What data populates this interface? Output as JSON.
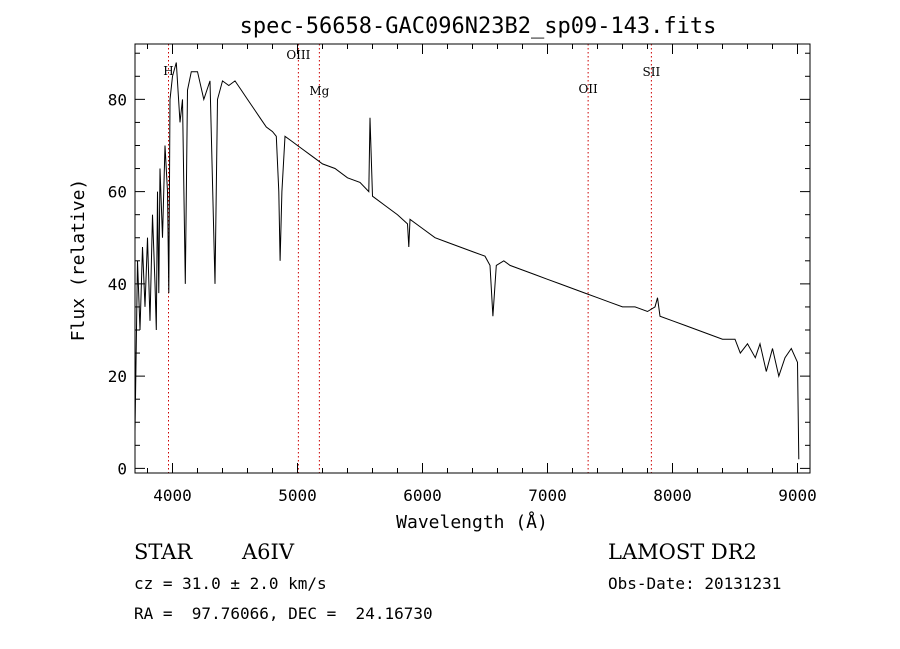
{
  "chart_data": {
    "type": "line",
    "title": "spec-56658-GAC096N23B2_sp09-143.fits",
    "xlabel": "Wavelength (Å)",
    "ylabel": "Flux (relative)",
    "xlim": [
      3700,
      9100
    ],
    "ylim": [
      -1,
      92
    ],
    "xticks": [
      4000,
      5000,
      6000,
      7000,
      8000,
      9000
    ],
    "yticks": [
      0,
      20,
      40,
      60,
      80
    ],
    "grid": false,
    "line_color": "#000000",
    "marker_color": "#cc0000",
    "series": [
      {
        "x": [
          3700,
          3720,
          3740,
          3760,
          3780,
          3800,
          3820,
          3840,
          3860,
          3870,
          3880,
          3890,
          3900,
          3920,
          3940,
          3960,
          3970,
          3980,
          4000,
          4030,
          4060,
          4080,
          4102,
          4120,
          4150,
          4200,
          4250,
          4300,
          4340,
          4360,
          4400,
          4450,
          4500,
          4550,
          4600,
          4650,
          4700,
          4750,
          4800,
          4830,
          4850,
          4861,
          4875,
          4900,
          4950,
          5000,
          5050,
          5100,
          5150,
          5200,
          5300,
          5400,
          5500,
          5570,
          5580,
          5600,
          5700,
          5800,
          5880,
          5890,
          5900,
          6000,
          6100,
          6200,
          6300,
          6400,
          6500,
          6540,
          6563,
          6590,
          6650,
          6700,
          6800,
          6900,
          7000,
          7100,
          7200,
          7300,
          7400,
          7500,
          7600,
          7700,
          7800,
          7860,
          7880,
          7900,
          8000,
          8100,
          8200,
          8300,
          8400,
          8500,
          8542,
          8600,
          8662,
          8700,
          8750,
          8800,
          8850,
          8900,
          8950,
          9000,
          9010
        ],
        "y": [
          8,
          45,
          30,
          48,
          35,
          50,
          32,
          55,
          40,
          30,
          60,
          38,
          65,
          50,
          70,
          60,
          38,
          80,
          85,
          88,
          75,
          80,
          40,
          82,
          86,
          86,
          80,
          84,
          40,
          80,
          84,
          83,
          84,
          82,
          80,
          78,
          76,
          74,
          73,
          72,
          60,
          45,
          60,
          72,
          71,
          70,
          69,
          68,
          67,
          66,
          65,
          63,
          62,
          60,
          76,
          59,
          57,
          55,
          53,
          48,
          54,
          52,
          50,
          49,
          48,
          47,
          46,
          44,
          33,
          44,
          45,
          44,
          43,
          42,
          41,
          40,
          39,
          38,
          37,
          36,
          35,
          35,
          34,
          35,
          37,
          33,
          32,
          31,
          30,
          29,
          28,
          28,
          25,
          27,
          24,
          27,
          21,
          26,
          20,
          24,
          26,
          23,
          2
        ]
      }
    ],
    "reference_lines": [
      {
        "label": "H",
        "x": 3968
      },
      {
        "label": "OIII",
        "x": 5007
      },
      {
        "label": "Mg",
        "x": 5175
      },
      {
        "label": "OII",
        "x": 7325
      },
      {
        "label": "SII",
        "x": 7831
      }
    ]
  },
  "info": {
    "object_class": "STAR",
    "subclass": "A6IV",
    "survey": "LAMOST DR2",
    "redshift_line": "cz = 31.0 ± 2.0 km/s",
    "obs_date": "Obs-Date: 20131231",
    "coords": "RA =  97.76066, DEC =  24.16730"
  }
}
